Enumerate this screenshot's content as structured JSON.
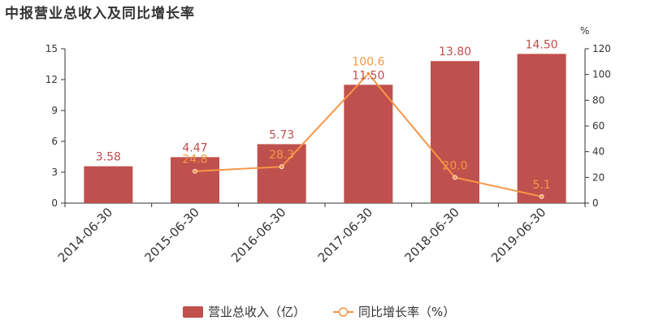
{
  "title": "中报营业总收入及同比增长率",
  "colors": {
    "bar": "#c0504d",
    "line": "#f79646",
    "axis": "#333333"
  },
  "chart_data": {
    "type": "bar",
    "title": "中报营业总收入及同比增长率",
    "categories": [
      "2014-06-30",
      "2015-06-30",
      "2016-06-30",
      "2017-06-30",
      "2018-06-30",
      "2019-06-30"
    ],
    "series": [
      {
        "name": "营业总收入（亿）",
        "type": "bar",
        "axis": "left",
        "values": [
          3.58,
          4.47,
          5.73,
          11.5,
          13.8,
          14.5
        ],
        "labels": [
          "3.58",
          "4.47",
          "5.73",
          "11.50",
          "13.80",
          "14.50"
        ]
      },
      {
        "name": "同比增长率（%）",
        "type": "line",
        "axis": "right",
        "values": [
          null,
          24.8,
          28.3,
          100.6,
          20.0,
          5.1
        ],
        "labels": [
          "",
          "24.8",
          "28.3",
          "100.6",
          "20.0",
          "5.1"
        ]
      }
    ],
    "y_left": {
      "ylim": [
        0,
        15
      ],
      "ticks": [
        "0",
        "3",
        "6",
        "9",
        "12",
        "15"
      ]
    },
    "y_right": {
      "unit": "%",
      "ylim": [
        0,
        120
      ],
      "ticks": [
        "0",
        "20",
        "40",
        "60",
        "80",
        "100",
        "120"
      ]
    },
    "legend_position": "bottom-center",
    "grid": false
  }
}
